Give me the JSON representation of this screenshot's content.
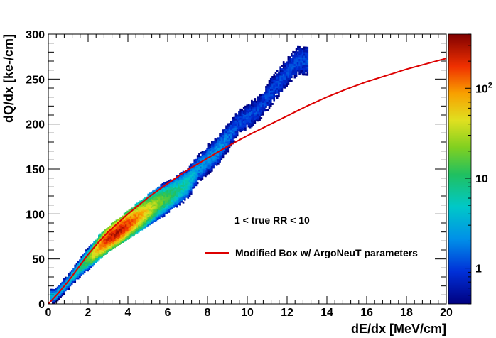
{
  "chart_data": {
    "type": "heatmap",
    "title": "",
    "xlabel": "dE/dx [MeV/cm]",
    "ylabel": "dQ/dx [ke-/cm]",
    "xlim": [
      0,
      20
    ],
    "ylim": [
      0,
      300
    ],
    "x_ticks": [
      "0",
      "2",
      "4",
      "6",
      "8",
      "10",
      "12",
      "14",
      "16",
      "18",
      "20"
    ],
    "y_ticks": [
      "0",
      "50",
      "100",
      "150",
      "200",
      "250",
      "300"
    ],
    "colorbar": {
      "scale": "log",
      "range": [
        0.4,
        400
      ],
      "ticks": [
        {
          "value": 1,
          "label": "1"
        },
        {
          "value": 10,
          "label": "10"
        },
        {
          "value": 100,
          "label": "10",
          "exponent": "2"
        }
      ]
    },
    "annotation": "1 < true RR < 10",
    "density": {
      "description_points": [
        {
          "x": 0.3,
          "y": 8,
          "count": 3
        },
        {
          "x": 1.0,
          "y": 25,
          "count": 3
        },
        {
          "x": 1.5,
          "y": 38,
          "count": 5
        },
        {
          "x": 2.0,
          "y": 50,
          "count": 15
        },
        {
          "x": 2.5,
          "y": 62,
          "count": 80
        },
        {
          "x": 3.0,
          "y": 72,
          "count": 250
        },
        {
          "x": 3.5,
          "y": 80,
          "count": 280
        },
        {
          "x": 4.0,
          "y": 88,
          "count": 180
        },
        {
          "x": 4.5,
          "y": 96,
          "count": 90
        },
        {
          "x": 5.0,
          "y": 104,
          "count": 40
        },
        {
          "x": 5.5,
          "y": 112,
          "count": 18
        },
        {
          "x": 6.0,
          "y": 118,
          "count": 10
        },
        {
          "x": 6.5,
          "y": 126,
          "count": 6
        },
        {
          "x": 7.0,
          "y": 134,
          "count": 4
        },
        {
          "x": 7.5,
          "y": 150,
          "count": 2
        },
        {
          "x": 8.5,
          "y": 170,
          "count": 2
        },
        {
          "x": 9.5,
          "y": 200,
          "count": 1
        },
        {
          "x": 10.5,
          "y": 215,
          "count": 1
        },
        {
          "x": 11.5,
          "y": 245,
          "count": 1
        },
        {
          "x": 12.5,
          "y": 270,
          "count": 1
        }
      ]
    },
    "series": [
      {
        "name": "Modified Box w/ ArgoNeuT parameters",
        "type": "line",
        "color": "#dd0000",
        "x": [
          0,
          0.5,
          1,
          1.5,
          2,
          2.5,
          3,
          3.5,
          4,
          5,
          6,
          7,
          8,
          9,
          10,
          11,
          12,
          13,
          14,
          15,
          16,
          17,
          18,
          19,
          20
        ],
        "y": [
          0,
          12,
          25,
          40,
          55,
          68,
          80,
          90,
          100,
          118,
          134,
          149,
          162,
          175,
          187,
          198,
          209,
          220,
          230,
          239,
          247,
          254,
          261,
          267,
          273
        ]
      }
    ]
  }
}
